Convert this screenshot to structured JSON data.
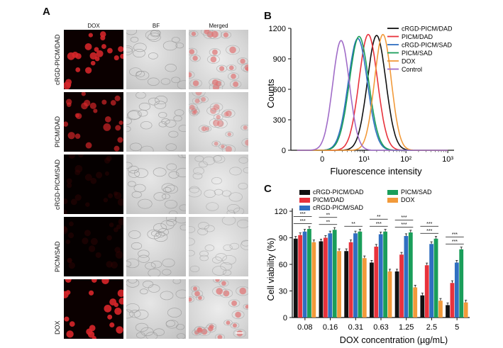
{
  "panelA": {
    "letter": "A",
    "columns": [
      "DOX",
      "BF",
      "Merged"
    ],
    "rows": [
      "cRGD-PICM/DAD",
      "PICM/DAD",
      "cRGD-PICM/SAD",
      "PICM/SAD",
      "DOX"
    ],
    "dox_intensity": [
      0.95,
      0.6,
      0.05,
      0.08,
      1.0
    ]
  },
  "panelB": {
    "letter": "B",
    "chart_data": {
      "type": "line",
      "xlabel": "Fluorescence intensity",
      "ylabel": "Counts",
      "x_scale": "log",
      "x_ticks": [
        "0",
        "10¹",
        "10²",
        "10³"
      ],
      "y_ticks": [
        "0",
        "300",
        "600",
        "900",
        "1200"
      ],
      "ylim": [
        0,
        1200
      ],
      "series": [
        {
          "name": "cRGD-PICM/DAD",
          "color": "#111111",
          "peak_log10": 1.3,
          "peak": 1130,
          "width": 0.22
        },
        {
          "name": "PICM/DAD",
          "color": "#e8323c",
          "peak_log10": 1.1,
          "peak": 1140,
          "width": 0.22
        },
        {
          "name": "cRGD-PICM/SAD",
          "color": "#2f6fc1",
          "peak_log10": 0.85,
          "peak": 1100,
          "width": 0.23
        },
        {
          "name": "PICM/SAD",
          "color": "#1a9e5a",
          "peak_log10": 0.88,
          "peak": 1120,
          "width": 0.23
        },
        {
          "name": "DOX",
          "color": "#f29a3a",
          "peak_log10": 1.45,
          "peak": 1140,
          "width": 0.2
        },
        {
          "name": "Control",
          "color": "#a06cc8",
          "peak_log10": 0.45,
          "peak": 1080,
          "width": 0.2
        }
      ]
    }
  },
  "panelC": {
    "letter": "C",
    "chart_data": {
      "type": "bar",
      "ylabel": "Cell viability (%)",
      "xlabel": "DOX concentration (µg/mL)",
      "ylim": [
        0,
        120
      ],
      "y_ticks": [
        "0",
        "30",
        "60",
        "90",
        "120"
      ],
      "categories": [
        "0.08",
        "0.16",
        "0.31",
        "0.63",
        "1.25",
        "2.5",
        "5"
      ],
      "series": [
        {
          "name": "cRGD-PICM/DAD",
          "color": "#111111",
          "values": [
            89,
            86,
            75,
            62,
            52,
            25,
            14
          ]
        },
        {
          "name": "PICM/DAD",
          "color": "#e8323c",
          "values": [
            93,
            90,
            85,
            80,
            71,
            59,
            39
          ]
        },
        {
          "name": "cRGD-PICM/SAD",
          "color": "#2f6fc1",
          "values": [
            97,
            95,
            95,
            94,
            92,
            83,
            62
          ]
        },
        {
          "name": "PICM/SAD",
          "color": "#1a9e5a",
          "values": [
            100,
            99,
            97,
            97,
            96,
            89,
            77
          ]
        },
        {
          "name": "DOX",
          "color": "#f29a3a",
          "values": [
            85,
            75,
            67,
            52,
            34,
            19,
            17
          ]
        }
      ],
      "significance": [
        [
          "***",
          "***"
        ],
        [
          "**",
          "**"
        ],
        [
          "**",
          ""
        ],
        [
          "***",
          "**"
        ],
        [
          "***",
          "***"
        ],
        [
          "***",
          "***"
        ],
        [
          "***",
          "***"
        ]
      ]
    }
  }
}
